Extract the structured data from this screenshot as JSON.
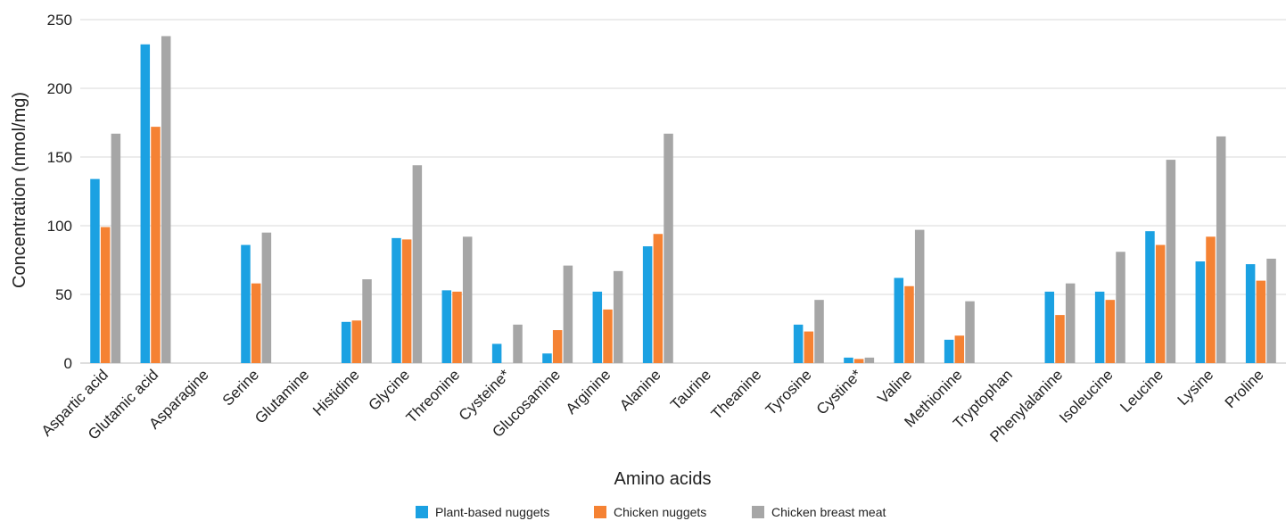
{
  "chart_data": {
    "type": "bar",
    "title": "",
    "xlabel": "Amino acids",
    "ylabel": "Concentration (nmol/mg)",
    "ylim": [
      0,
      250
    ],
    "yticks": [
      0,
      50,
      100,
      150,
      200,
      250
    ],
    "grid": true,
    "legend_position": "bottom",
    "categories": [
      "Aspartic acid",
      "Glutamic acid",
      "Asparagine",
      "Serine",
      "Glutamine",
      "Histidine",
      "Glycine",
      "Threonine",
      "Cysteine*",
      "Glucosamine",
      "Arginine",
      "Alanine",
      "Taurine",
      "Theanine",
      "Tyrosine",
      "Cystine*",
      "Valine",
      "Methionine",
      "Tryptophan",
      "Phenylalanine",
      "Isoleucine",
      "Leucine",
      "Lysine",
      "Proline"
    ],
    "series": [
      {
        "name": "Plant-based nuggets",
        "color": "#1ba1e2",
        "values": [
          134,
          232,
          0,
          86,
          0,
          30,
          91,
          53,
          14,
          7,
          52,
          85,
          0,
          0,
          28,
          4,
          62,
          17,
          0,
          52,
          52,
          96,
          74,
          72
        ]
      },
      {
        "name": "Chicken nuggets",
        "color": "#f58233",
        "values": [
          99,
          172,
          0,
          58,
          0,
          31,
          90,
          52,
          0,
          24,
          39,
          94,
          0,
          0,
          23,
          3,
          56,
          20,
          0,
          35,
          46,
          86,
          92,
          60
        ]
      },
      {
        "name": "Chicken breast meat",
        "color": "#a6a6a6",
        "values": [
          167,
          238,
          0,
          95,
          0,
          61,
          144,
          92,
          28,
          71,
          67,
          167,
          0,
          0,
          46,
          4,
          97,
          45,
          0,
          58,
          81,
          148,
          165,
          76
        ]
      }
    ]
  }
}
